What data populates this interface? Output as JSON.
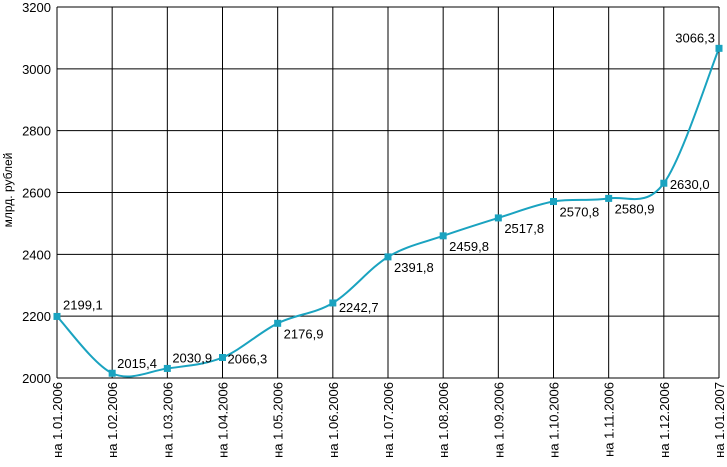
{
  "chart_data": {
    "type": "line",
    "title": "",
    "xlabel": "",
    "ylabel": "млрд. рублей",
    "categories": [
      "на 1.01.2006",
      "на 1.02.2006",
      "на 1.03.2006",
      "на 1.04.2006",
      "на 1.05.2006",
      "на 1.06.2006",
      "на 1.07.2006",
      "на 1.08.2006",
      "на 1.09.2006",
      "на 1.10.2006",
      "на 1.11.2006",
      "на 1.12.2006",
      "на 1.01.2007"
    ],
    "values": [
      2199.1,
      2015.4,
      2030.9,
      2066.3,
      2176.9,
      2242.7,
      2391.8,
      2459.8,
      2517.8,
      2570.8,
      2580.9,
      2630.0,
      3066.3
    ],
    "data_labels": [
      "2199,1",
      "2015,4",
      "2030,9",
      "2066,3",
      "2176,9",
      "2242,7",
      "2391,8",
      "2459,8",
      "2517,8",
      "2570,8",
      "2580,9",
      "2630,0",
      "3066,3"
    ],
    "ylim": [
      2000,
      3200
    ],
    "yticks": [
      2000,
      2200,
      2400,
      2600,
      2800,
      3000,
      3200
    ],
    "grid": true,
    "line_color": "#1aa3c0",
    "marker_color": "#1aa3c0",
    "grid_color": "#000000"
  }
}
